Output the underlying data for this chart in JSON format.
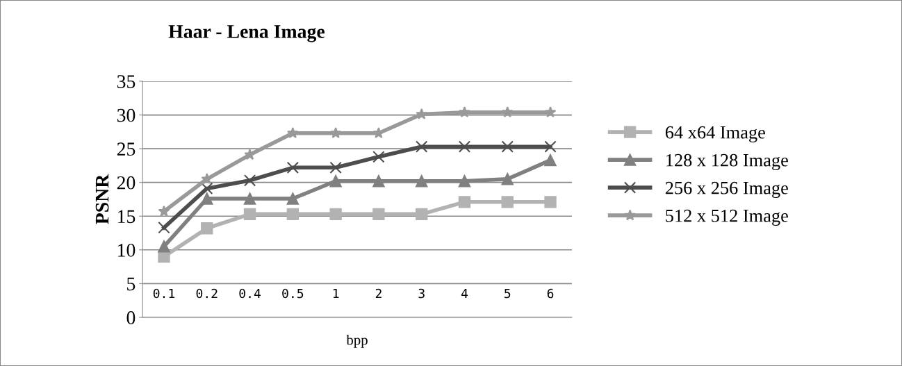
{
  "chart_data": {
    "type": "line",
    "title": "Haar - Lena Image",
    "xlabel": "bpp",
    "ylabel": "PSNR",
    "categories": [
      "0.1",
      "0.2",
      "0.4",
      "0.5",
      "1",
      "2",
      "3",
      "4",
      "5",
      "6"
    ],
    "series": [
      {
        "name": "64 x64 Image",
        "color": "#b2b2b2",
        "marker": "square",
        "values": [
          9.0,
          13.2,
          15.3,
          15.3,
          15.3,
          15.3,
          15.3,
          17.1,
          17.1,
          17.1
        ]
      },
      {
        "name": "128 x 128 Image",
        "color": "#808080",
        "marker": "triangle",
        "values": [
          10.5,
          17.6,
          17.6,
          17.6,
          20.2,
          20.2,
          20.2,
          20.2,
          20.5,
          23.3
        ]
      },
      {
        "name": "256 x 256 Image",
        "color": "#4d4d4d",
        "marker": "cross",
        "values": [
          13.3,
          19.1,
          20.3,
          22.2,
          22.2,
          23.8,
          25.3,
          25.3,
          25.3,
          25.3
        ]
      },
      {
        "name": "512 x 512 Image",
        "color": "#999999",
        "marker": "star",
        "values": [
          15.7,
          20.5,
          24.1,
          27.3,
          27.3,
          27.3,
          30.1,
          30.4,
          30.4,
          30.4
        ]
      }
    ],
    "ylim": [
      0,
      35
    ],
    "yticks": [
      0,
      5,
      10,
      15,
      20,
      25,
      30,
      35
    ],
    "grid": "y",
    "legend": "right",
    "line_style": "solid"
  }
}
